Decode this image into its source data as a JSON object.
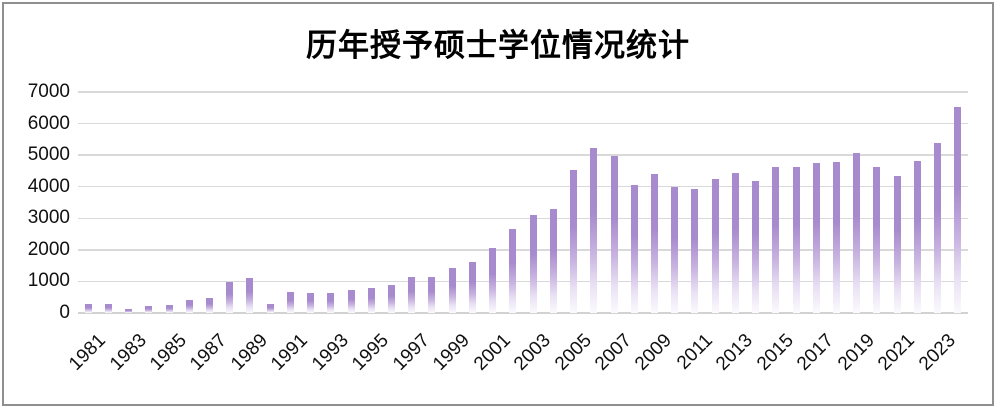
{
  "title": "历年授予硕士学位情况统计",
  "colors": {
    "bar_top": "#a88bce",
    "bar_mid": "#c7b2e0",
    "bar_fade": "#fbfafd",
    "gridline": "#d9d9d9",
    "frame_border": "#8f8f8f",
    "text": "#111111"
  },
  "chart_data": {
    "type": "bar",
    "title": "历年授予硕士学位情况统计",
    "categories": [
      1981,
      1982,
      1983,
      1984,
      1985,
      1986,
      1987,
      1988,
      1989,
      1990,
      1991,
      1992,
      1993,
      1994,
      1995,
      1996,
      1997,
      1998,
      1999,
      2000,
      2001,
      2002,
      2003,
      2004,
      2005,
      2006,
      2007,
      2008,
      2009,
      2010,
      2011,
      2012,
      2013,
      2014,
      2015,
      2016,
      2017,
      2018,
      2019,
      2020,
      2021,
      2022,
      2023,
      2024
    ],
    "values": [
      280,
      290,
      120,
      210,
      240,
      420,
      490,
      980,
      1100,
      290,
      680,
      640,
      620,
      730,
      800,
      880,
      1130,
      1130,
      1430,
      1620,
      2070,
      2660,
      3090,
      3300,
      4540,
      5230,
      4980,
      4060,
      4390,
      4000,
      3920,
      4260,
      4430,
      4170,
      4610,
      4640,
      4750,
      4780,
      5060,
      4620,
      4350,
      4800,
      5400,
      6520
    ],
    "x_tick_labels": [
      "1981",
      "1983",
      "1985",
      "1987",
      "1989",
      "1991",
      "1993",
      "1995",
      "1997",
      "1999",
      "2001",
      "2003",
      "2005",
      "2007",
      "2009",
      "2011",
      "2013",
      "2015",
      "2017",
      "2019",
      "2021",
      "2023"
    ],
    "y_ticks": [
      0,
      1000,
      2000,
      3000,
      4000,
      5000,
      6000,
      7000
    ],
    "ylim": [
      0,
      7000
    ],
    "xlabel": "",
    "ylabel": "",
    "grid": true,
    "legend": "none",
    "bar_style": "vertical gradient fading to white at base"
  }
}
